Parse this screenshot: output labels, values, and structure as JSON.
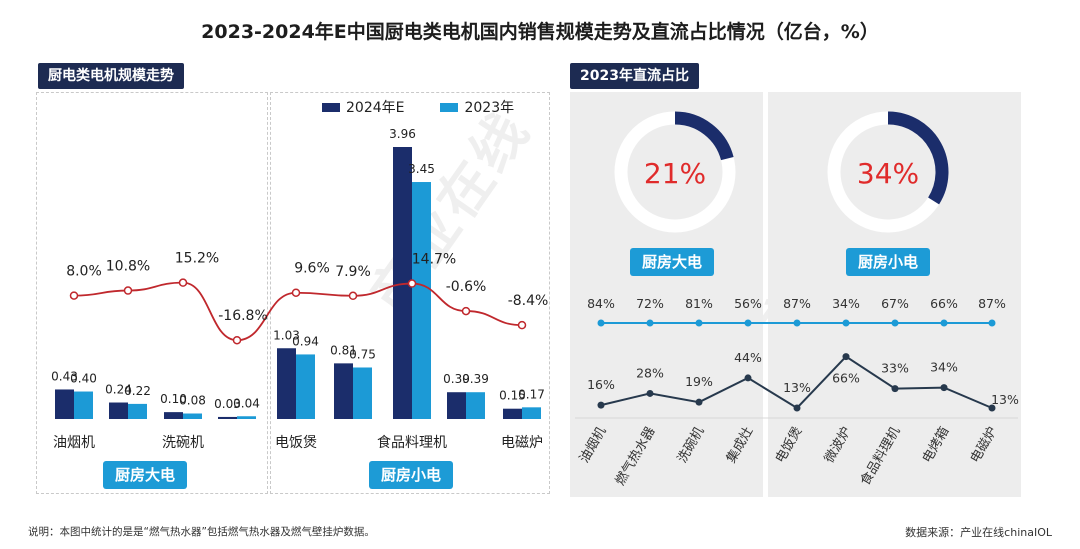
{
  "title": "2023-2024年E中国厨电类电机国内销售规模走势及直流占比情况（亿台，%）",
  "left_section_label": "厨电类电机规模走势",
  "right_section_label": "2023年直流占比",
  "group_tags": [
    "厨房大电",
    "厨房小电"
  ],
  "note": "说明：本图中统计的是是“燃气热水器”包括燃气热水器及燃气壁挂炉数据。",
  "source": "数据来源：产业在线chinaIOL",
  "watermark_text": "产业在线",
  "colors": {
    "s2024": "#1b2d6b",
    "s2023": "#1c9ad6",
    "growth_line": "#c0282d",
    "dc_red": "#e02b2b",
    "blue_line": "#1c9ad6",
    "dark_line": "#27394d"
  },
  "chart_data": [
    {
      "type": "bar",
      "categories": [
        "油烟机",
        "燃气热水器",
        "洗碗机",
        "集成灶",
        "电饭煲",
        "微波炉",
        "食品料理机",
        "电烤箱",
        "电磁炉"
      ],
      "shown_category_labels": [
        "油烟机",
        "洗碗机",
        "电饭煲",
        "食品料理机",
        "电磁炉"
      ],
      "series": [
        {
          "name": "2024年E",
          "values": [
            0.43,
            0.24,
            0.1,
            0.03,
            1.03,
            0.81,
            3.96,
            0.39,
            0.15
          ]
        },
        {
          "name": "2023年",
          "values": [
            0.4,
            0.22,
            0.08,
            0.04,
            0.94,
            0.75,
            3.45,
            0.39,
            0.17
          ]
        }
      ],
      "growth_line": {
        "values": [
          8.0,
          10.8,
          15.2,
          -16.8,
          9.6,
          7.9,
          14.7,
          -0.6,
          -8.4
        ],
        "labels": [
          "8.0%",
          "10.8%",
          "15.2%",
          "-16.8%",
          "9.6%",
          "7.9%",
          "14.7%",
          "-0.6%",
          "-8.4%"
        ]
      }
    },
    {
      "type": "pie",
      "title": "厨房大电",
      "value": 21,
      "label": "21%"
    },
    {
      "type": "pie",
      "title": "厨房小电",
      "value": 34,
      "label": "34%"
    },
    {
      "type": "line",
      "categories": [
        "油烟机",
        "燃气热水器",
        "洗碗机",
        "集成灶",
        "电饭煲",
        "微波炉",
        "食品料理机",
        "电烤箱",
        "电磁炉"
      ],
      "series": [
        {
          "values": [
            84,
            72,
            81,
            56,
            87,
            34,
            67,
            66,
            87
          ],
          "labels": [
            "84%",
            "72%",
            "81%",
            "56%",
            "87%",
            "34%",
            "67%",
            "66%",
            "87%"
          ]
        },
        {
          "values": [
            16,
            28,
            19,
            44,
            13,
            66,
            33,
            34,
            13
          ],
          "labels": [
            "16%",
            "28%",
            "19%",
            "44%",
            "13%",
            "66%",
            "33%",
            "34%",
            "13%"
          ]
        }
      ]
    }
  ]
}
